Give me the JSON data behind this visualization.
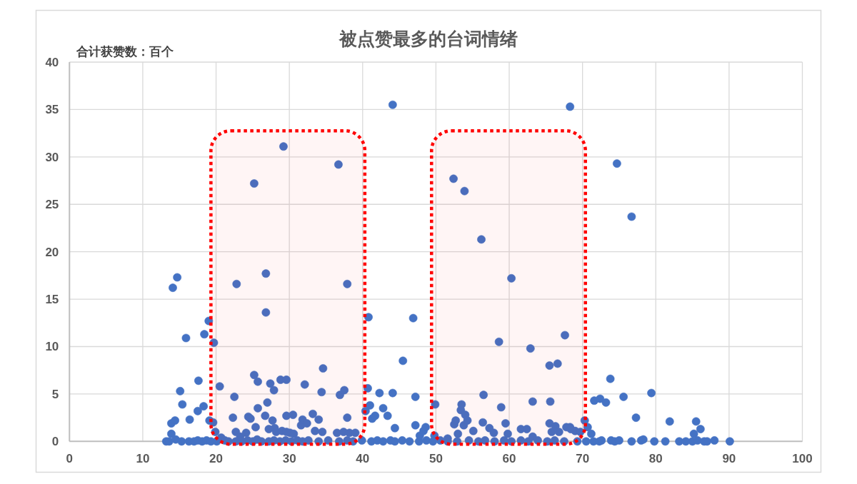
{
  "chart_data": {
    "type": "scatter",
    "title": "被点赞最多的台词情绪",
    "ylabel": "合计获赞数：百个",
    "x": [
      13.2,
      13.6,
      13.9,
      13.9,
      14.4,
      14.1,
      14.7,
      14.5,
      15.1,
      15.4,
      15.3,
      15.9,
      16.4,
      16.3,
      17.0,
      17.5,
      17.5,
      17.6,
      18.1,
      18.3,
      18.4,
      18.7,
      19.0,
      19.1,
      19.3,
      19.6,
      19.7,
      19.9,
      20.1,
      20.5,
      20.7,
      21.2,
      21.7,
      22.3,
      22.5,
      22.7,
      22.7,
      22.8,
      23.3,
      23.5,
      24.1,
      24.3,
      24.4,
      24.7,
      25.0,
      25.2,
      25.2,
      25.4,
      25.6,
      25.7,
      25.7,
      26.2,
      26.7,
      26.8,
      26.8,
      27.0,
      27.2,
      27.2,
      27.4,
      27.7,
      27.9,
      28.0,
      28.2,
      27.9,
      28.7,
      28.8,
      29.0,
      29.2,
      29.5,
      29.6,
      29.6,
      29.6,
      30.1,
      30.3,
      30.5,
      30.6,
      31.1,
      31.6,
      31.8,
      31.8,
      32.1,
      32.4,
      32.6,
      33.2,
      33.5,
      34.0,
      34.0,
      34.4,
      34.6,
      34.5,
      35.3,
      36.5,
      36.7,
      36.8,
      36.9,
      37.4,
      37.5,
      37.9,
      37.9,
      37.9,
      38.2,
      38.7,
      39.0,
      39.9,
      40.4,
      40.7,
      40.8,
      41.0,
      41.2,
      41.3,
      41.7,
      42.0,
      42.3,
      42.8,
      42.8,
      43.4,
      43.8,
      44.1,
      44.1,
      44.4,
      44.4,
      45.4,
      45.5,
      46.4,
      46.9,
      47.2,
      47.2,
      47.7,
      47.8,
      48.3,
      48.6,
      48.7,
      49.6,
      49.8,
      49.9,
      50.6,
      51.6,
      51.6,
      52.4,
      52.5,
      52.7,
      52.9,
      53.0,
      53.4,
      53.5,
      53.8,
      53.9,
      54.0,
      54.3,
      54.5,
      55.1,
      55.8,
      56.2,
      56.4,
      56.5,
      56.7,
      57.3,
      57.9,
      58.0,
      58.6,
      58.9,
      59.3,
      59.5,
      59.8,
      60.3,
      60.3,
      61.6,
      61.6,
      62.4,
      62.6,
      62.9,
      63.2,
      63.2,
      63.9,
      65.2,
      65.5,
      65.5,
      65.6,
      65.8,
      66.2,
      66.3,
      66.6,
      66.8,
      67.5,
      67.6,
      67.8,
      68.3,
      68.3,
      68.4,
      69.0,
      69.3,
      69.7,
      70.3,
      70.5,
      70.7,
      71.2,
      71.5,
      71.6,
      72.3,
      72.4,
      72.6,
      73.2,
      73.8,
      73.9,
      74.4,
      74.7,
      75.0,
      75.6,
      76.7,
      76.7,
      77.3,
      78.0,
      78.3,
      79.4,
      79.8,
      81.3,
      81.9,
      83.2,
      84.1,
      85.0,
      85.2,
      85.5,
      85.7,
      86.1,
      86.6,
      87.0,
      88.0,
      90.1
    ],
    "values": [
      0,
      0,
      0.8,
      1.9,
      2.2,
      16.2,
      17.3,
      0.2,
      5.3,
      3.9,
      0,
      10.9,
      2.3,
      0,
      0,
      3.2,
      0.1,
      6.4,
      0,
      3.7,
      11.3,
      0.1,
      12.7,
      2.2,
      0,
      2.0,
      10.4,
      1.0,
      0,
      5.8,
      0.4,
      0.1,
      0,
      2.5,
      4.7,
      1.0,
      0,
      16.6,
      0.5,
      0,
      0.9,
      0.1,
      2.6,
      2.4,
      0,
      7.0,
      27.2,
      1.5,
      0.2,
      6.3,
      3.5,
      0,
      2.7,
      17.7,
      13.6,
      4.1,
      1.3,
      0,
      6.1,
      2.2,
      5.4,
      1.4,
      1.0,
      0.1,
      0,
      6.5,
      1.1,
      31.1,
      0.1,
      6.5,
      2.7,
      1.0,
      0.9,
      0,
      2.8,
      0.8,
      0.1,
      1.7,
      2.3,
      0,
      6.0,
      1.9,
      0.1,
      2.9,
      1.1,
      2.3,
      0,
      5.2,
      7.7,
      1.0,
      0.1,
      0.9,
      29.2,
      0,
      4.9,
      1.0,
      5.4,
      2.5,
      16.6,
      0.1,
      0.9,
      0,
      0.9,
      0.1,
      3.2,
      5.6,
      13.1,
      3.8,
      0,
      2.4,
      2.7,
      0.1,
      5.1,
      3.5,
      0,
      2.7,
      0.1,
      5.1,
      35.5,
      1.4,
      0,
      0.1,
      8.5,
      0,
      13.0,
      4.7,
      1.7,
      0,
      0.6,
      1.1,
      1.5,
      0.1,
      0,
      0.6,
      3.9,
      0.1,
      0.3,
      0,
      27.7,
      1.8,
      2.2,
      0,
      0.8,
      3.3,
      3.9,
      1.7,
      26.4,
      2.8,
      2.2,
      0.1,
      1.1,
      0,
      21.3,
      2.0,
      4.9,
      0.1,
      1.4,
      0.9,
      0,
      10.5,
      3.6,
      0.1,
      1.9,
      0.8,
      17.2,
      0,
      1.3,
      0.1,
      1.3,
      0,
      9.8,
      4.2,
      0.5,
      0.1,
      0,
      8.0,
      1.9,
      4.2,
      1.0,
      0.1,
      1.6,
      8.2,
      1.0,
      0,
      11.2,
      1.5,
      35.3,
      1.5,
      1.3,
      1.1,
      0,
      1.0,
      2.2,
      0,
      1.5,
      0.8,
      0,
      4.3,
      0,
      4.5,
      0.1,
      4.1,
      6.6,
      0.1,
      0,
      29.3,
      0.1,
      4.7,
      23.7,
      0,
      2.5,
      0.1,
      0.2,
      5.1,
      0,
      0,
      2.1,
      0,
      0,
      0,
      0.8,
      2.1,
      0.1,
      1.3,
      0,
      0,
      0.1,
      0
    ],
    "color": "#4472c4",
    "marker": "circle",
    "xlim": [
      0,
      100
    ],
    "xticks": [
      0,
      10,
      20,
      30,
      40,
      50,
      60,
      70,
      80,
      90,
      100
    ],
    "ylim": [
      0,
      40
    ],
    "yticks": [
      0,
      5,
      10,
      15,
      20,
      25,
      30,
      35,
      40
    ],
    "grid": true,
    "bands": [
      {
        "axis": "x",
        "from": 19.3,
        "to": 40.3,
        "color": "#ff0000"
      },
      {
        "axis": "x",
        "from": 49.4,
        "to": 70.4,
        "color": "#ff0000"
      }
    ]
  }
}
